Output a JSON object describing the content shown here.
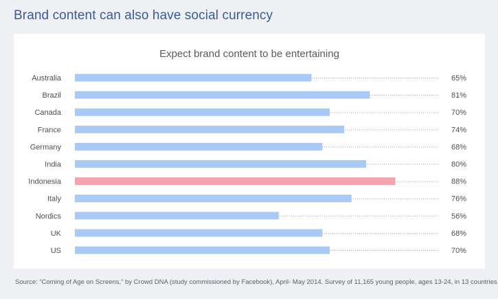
{
  "header": {
    "title": "Brand content can also have social currency"
  },
  "footer": {
    "source": "Source: “Coming of Age on Screens,” by Crowd DNA (study commissioned by Facebook), April- May 2014. Survey of 11,165 young people, ages 13-24, in 13 countries."
  },
  "chart_data": {
    "type": "bar",
    "orientation": "horizontal",
    "title": "Expect brand content to be entertaining",
    "categories": [
      "Australia",
      "Brazil",
      "Canada",
      "France",
      "Germany",
      "India",
      "Indonesia",
      "Italy",
      "Nordics",
      "UK",
      "US"
    ],
    "values": [
      65,
      81,
      70,
      74,
      68,
      80,
      88,
      76,
      56,
      68,
      70
    ],
    "value_labels": [
      "65%",
      "81%",
      "70%",
      "74%",
      "68%",
      "80%",
      "88%",
      "76%",
      "56%",
      "68%",
      "70%"
    ],
    "highlight": "Indonesia",
    "xlim": [
      0,
      100
    ],
    "grid": false,
    "colors": {
      "bar": "#a9c9f7",
      "highlight": "#f4a3b1",
      "leader": "#9aa0a8",
      "label": "#4a4f57"
    }
  }
}
